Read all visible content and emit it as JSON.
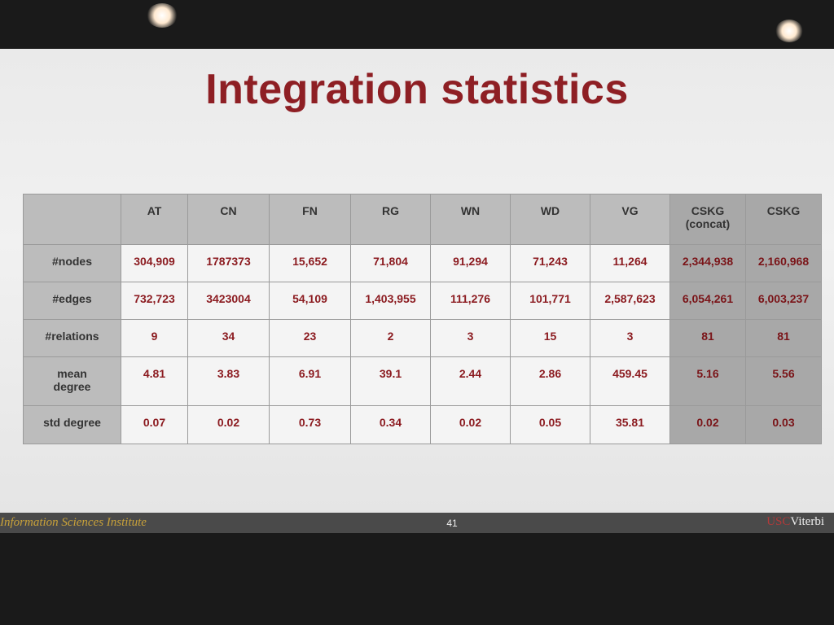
{
  "title": "Integration statistics",
  "table": {
    "columns": [
      "AT",
      "CN",
      "FN",
      "RG",
      "WN",
      "WD",
      "VG",
      "CSKG (concat)",
      "CSKG"
    ],
    "rows": [
      {
        "label": "#nodes",
        "cells": [
          "304,909",
          "1787373",
          "15,652",
          "71,804",
          "91,294",
          "71,243",
          "11,264",
          "2,344,938",
          "2,160,968"
        ]
      },
      {
        "label": "#edges",
        "cells": [
          "732,723",
          "3423004",
          "54,109",
          "1,403,955",
          "111,276",
          "101,771",
          "2,587,623",
          "6,054,261",
          "6,003,237"
        ]
      },
      {
        "label": "#relations",
        "cells": [
          "9",
          "34",
          "23",
          "2",
          "3",
          "15",
          "3",
          "81",
          "81"
        ]
      },
      {
        "label": "mean degree",
        "cells": [
          "4.81",
          "3.83",
          "6.91",
          "39.1",
          "2.44",
          "2.86",
          "459.45",
          "5.16",
          "5.56"
        ]
      },
      {
        "label": "std degree",
        "cells": [
          "0.07",
          "0.02",
          "0.73",
          "0.34",
          "0.02",
          "0.05",
          "35.81",
          "0.02",
          "0.03"
        ]
      }
    ]
  },
  "footer": {
    "institute": "Information Sciences Institute",
    "page_number": "41",
    "logo_usc": "USC",
    "logo_viterbi": "Viterbi"
  }
}
